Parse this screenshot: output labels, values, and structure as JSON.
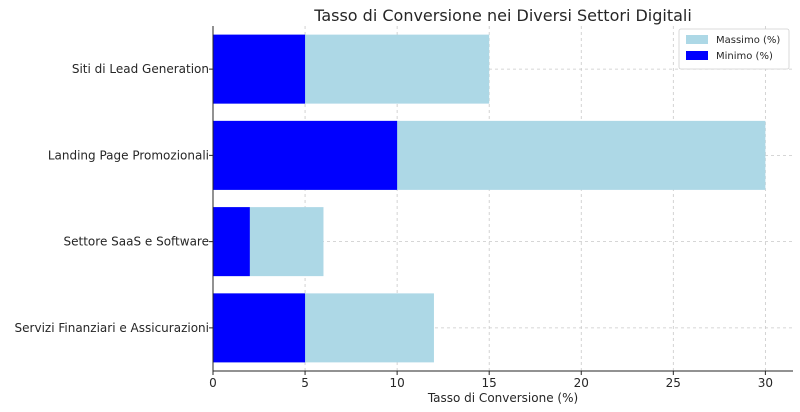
{
  "chart_data": {
    "type": "bar",
    "orientation": "horizontal",
    "title": "Tasso di Conversione nei Diversi Settori Digitali",
    "xlabel": "Tasso di Conversione (%)",
    "ylabel": "",
    "xlim": [
      0,
      31.5
    ],
    "xticks": [
      0,
      5,
      10,
      15,
      20,
      25,
      30
    ],
    "grid": true,
    "legend_position": "top-right",
    "categories": [
      "Servizi Finanziari e Assicurazioni",
      "Settore SaaS e Software",
      "Landing Page Promozionali",
      "Siti di Lead Generation"
    ],
    "series": [
      {
        "name": "Massimo (%)",
        "values": [
          12,
          6,
          30,
          15
        ],
        "color": "#add8e6"
      },
      {
        "name": "Minimo (%)",
        "values": [
          5,
          2,
          10,
          5
        ],
        "color": "#0000ff"
      }
    ]
  }
}
